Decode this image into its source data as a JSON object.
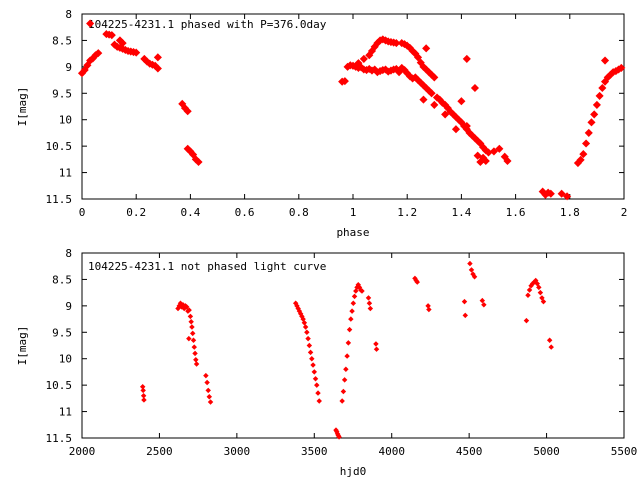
{
  "colors": {
    "points": "#ff0000",
    "axes": "#000000",
    "background": "#ffffff"
  },
  "chart_data": [
    {
      "type": "scatter",
      "title": "104225-4231.1 phased with P=376.0day",
      "xlabel": "phase",
      "ylabel": "I[mag]",
      "xlim": [
        0,
        2
      ],
      "ylim": [
        8,
        11.5
      ],
      "y_inverted": true,
      "x_ticks": [
        "0",
        "0.2",
        "0.4",
        "0.6",
        "0.8",
        "1",
        "1.2",
        "1.4",
        "1.6",
        "1.8",
        "2"
      ],
      "y_ticks": [
        "8",
        "8.5",
        "9",
        "9.5",
        "10",
        "10.5",
        "11",
        "11.5"
      ],
      "grid": false,
      "marker": "filled diamond",
      "series": [
        {
          "points": [
            [
              0.0,
              9.12
            ],
            [
              0.01,
              9.06
            ],
            [
              0.02,
              8.97
            ],
            [
              0.03,
              8.88
            ],
            [
              0.04,
              8.84
            ],
            [
              0.05,
              8.78
            ],
            [
              0.06,
              8.74
            ],
            [
              0.03,
              8.18
            ],
            [
              0.09,
              8.38
            ],
            [
              0.1,
              8.39
            ],
            [
              0.11,
              8.4
            ],
            [
              0.12,
              8.58
            ],
            [
              0.13,
              8.62
            ],
            [
              0.14,
              8.64
            ],
            [
              0.15,
              8.66
            ],
            [
              0.16,
              8.68
            ],
            [
              0.17,
              8.7
            ],
            [
              0.18,
              8.71
            ],
            [
              0.19,
              8.72
            ],
            [
              0.2,
              8.73
            ],
            [
              0.14,
              8.5
            ],
            [
              0.15,
              8.55
            ],
            [
              0.23,
              8.85
            ],
            [
              0.24,
              8.9
            ],
            [
              0.25,
              8.94
            ],
            [
              0.26,
              8.96
            ],
            [
              0.27,
              8.98
            ],
            [
              0.28,
              9.03
            ],
            [
              0.28,
              8.82
            ],
            [
              0.37,
              9.7
            ],
            [
              0.38,
              9.78
            ],
            [
              0.39,
              9.84
            ],
            [
              0.39,
              10.55
            ],
            [
              0.4,
              10.6
            ],
            [
              0.41,
              10.66
            ],
            [
              0.42,
              10.75
            ],
            [
              0.43,
              10.8
            ],
            [
              0.96,
              9.28
            ],
            [
              0.97,
              9.27
            ],
            [
              0.98,
              9.0
            ],
            [
              0.99,
              8.97
            ],
            [
              1.0,
              8.98
            ],
            [
              1.01,
              9.0
            ],
            [
              1.02,
              9.02
            ],
            [
              1.03,
              9.01
            ],
            [
              1.04,
              9.05
            ],
            [
              1.05,
              9.06
            ],
            [
              1.06,
              9.04
            ],
            [
              1.07,
              9.07
            ],
            [
              1.08,
              9.05
            ],
            [
              1.09,
              9.1
            ],
            [
              1.1,
              9.08
            ],
            [
              1.11,
              9.06
            ],
            [
              1.12,
              9.05
            ],
            [
              1.13,
              9.09
            ],
            [
              1.14,
              9.07
            ],
            [
              1.15,
              9.05
            ],
            [
              1.16,
              9.04
            ],
            [
              1.17,
              9.1
            ],
            [
              1.02,
              8.93
            ],
            [
              1.04,
              8.85
            ],
            [
              1.06,
              8.78
            ],
            [
              1.07,
              8.7
            ],
            [
              1.08,
              8.62
            ],
            [
              1.09,
              8.55
            ],
            [
              1.1,
              8.5
            ],
            [
              1.11,
              8.48
            ],
            [
              1.12,
              8.5
            ],
            [
              1.13,
              8.52
            ],
            [
              1.14,
              8.53
            ],
            [
              1.15,
              8.54
            ],
            [
              1.16,
              8.55
            ],
            [
              1.18,
              8.55
            ],
            [
              1.19,
              8.57
            ],
            [
              1.2,
              8.6
            ],
            [
              1.21,
              8.64
            ],
            [
              1.22,
              8.7
            ],
            [
              1.23,
              8.75
            ],
            [
              1.24,
              8.82
            ],
            [
              1.25,
              8.92
            ],
            [
              1.26,
              9.0
            ],
            [
              1.27,
              9.05
            ],
            [
              1.28,
              9.1
            ],
            [
              1.3,
              9.2
            ],
            [
              1.18,
              9.02
            ],
            [
              1.19,
              9.06
            ],
            [
              1.2,
              9.12
            ],
            [
              1.21,
              9.18
            ],
            [
              1.22,
              9.22
            ],
            [
              1.23,
              9.2
            ],
            [
              1.24,
              9.25
            ],
            [
              1.25,
              9.3
            ],
            [
              1.26,
              9.35
            ],
            [
              1.27,
              9.4
            ],
            [
              1.28,
              9.45
            ],
            [
              1.29,
              9.5
            ],
            [
              1.31,
              9.58
            ],
            [
              1.32,
              9.62
            ],
            [
              1.33,
              9.68
            ],
            [
              1.34,
              9.72
            ],
            [
              1.35,
              9.78
            ],
            [
              1.36,
              9.85
            ],
            [
              1.37,
              9.9
            ],
            [
              1.38,
              9.95
            ],
            [
              1.39,
              10.0
            ],
            [
              1.4,
              10.05
            ],
            [
              1.41,
              10.12
            ],
            [
              1.42,
              10.18
            ],
            [
              1.43,
              10.25
            ],
            [
              1.44,
              10.3
            ],
            [
              1.45,
              10.35
            ],
            [
              1.46,
              10.4
            ],
            [
              1.47,
              10.45
            ],
            [
              1.48,
              10.52
            ],
            [
              1.49,
              10.58
            ],
            [
              1.5,
              10.62
            ],
            [
              1.46,
              10.68
            ],
            [
              1.48,
              10.72
            ],
            [
              1.49,
              10.78
            ],
            [
              1.47,
              10.8
            ],
            [
              1.26,
              9.62
            ],
            [
              1.3,
              9.72
            ],
            [
              1.34,
              9.9
            ],
            [
              1.42,
              10.12
            ],
            [
              1.38,
              10.18
            ],
            [
              1.42,
              8.85
            ],
            [
              1.45,
              9.4
            ],
            [
              1.4,
              9.65
            ],
            [
              1.27,
              8.65
            ],
            [
              1.29,
              9.15
            ],
            [
              1.54,
              10.55
            ],
            [
              1.56,
              10.7
            ],
            [
              1.57,
              10.78
            ],
            [
              1.52,
              10.6
            ],
            [
              1.7,
              11.36
            ],
            [
              1.72,
              11.38
            ],
            [
              1.71,
              11.42
            ],
            [
              1.73,
              11.4
            ],
            [
              1.77,
              11.4
            ],
            [
              1.79,
              11.45
            ],
            [
              1.83,
              10.82
            ],
            [
              1.84,
              10.76
            ],
            [
              1.85,
              10.65
            ],
            [
              1.86,
              10.45
            ],
            [
              1.87,
              10.25
            ],
            [
              1.88,
              10.05
            ],
            [
              1.89,
              9.9
            ],
            [
              1.9,
              9.72
            ],
            [
              1.91,
              9.55
            ],
            [
              1.92,
              9.4
            ],
            [
              1.93,
              9.28
            ],
            [
              1.94,
              9.2
            ],
            [
              1.95,
              9.15
            ],
            [
              1.96,
              9.1
            ],
            [
              1.97,
              9.08
            ],
            [
              1.98,
              9.05
            ],
            [
              1.99,
              9.02
            ],
            [
              1.93,
              8.88
            ]
          ]
        }
      ]
    },
    {
      "type": "scatter",
      "title": "104225-4231.1 not phased light curve",
      "xlabel": "hjd0",
      "ylabel": "I[mag]",
      "xlim": [
        2000,
        5500
      ],
      "ylim": [
        8,
        11.5
      ],
      "y_inverted": true,
      "x_ticks": [
        "2000",
        "2500",
        "3000",
        "3500",
        "4000",
        "4500",
        "5000",
        "5500"
      ],
      "y_ticks": [
        "8",
        "8.5",
        "9",
        "9.5",
        "10",
        "10.5",
        "11",
        "11.5"
      ],
      "grid": false,
      "marker": "small diamond",
      "series": [
        {
          "points": [
            [
              2392,
              10.53
            ],
            [
              2395,
              10.6
            ],
            [
              2398,
              10.7
            ],
            [
              2400,
              10.78
            ],
            [
              2620,
              9.05
            ],
            [
              2628,
              9.0
            ],
            [
              2636,
              8.95
            ],
            [
              2644,
              9.02
            ],
            [
              2652,
              8.98
            ],
            [
              2660,
              9.05
            ],
            [
              2668,
              9.0
            ],
            [
              2676,
              9.02
            ],
            [
              2684,
              9.1
            ],
            [
              2692,
              9.08
            ],
            [
              2700,
              9.2
            ],
            [
              2705,
              9.3
            ],
            [
              2710,
              9.4
            ],
            [
              2715,
              9.52
            ],
            [
              2720,
              9.65
            ],
            [
              2725,
              9.78
            ],
            [
              2730,
              9.9
            ],
            [
              2735,
              10.02
            ],
            [
              2740,
              10.1
            ],
            [
              2690,
              9.62
            ],
            [
              2800,
              10.32
            ],
            [
              2808,
              10.45
            ],
            [
              2815,
              10.6
            ],
            [
              2822,
              10.72
            ],
            [
              2830,
              10.82
            ],
            [
              3380,
              8.95
            ],
            [
              3388,
              9.0
            ],
            [
              3396,
              9.05
            ],
            [
              3404,
              9.1
            ],
            [
              3412,
              9.15
            ],
            [
              3420,
              9.2
            ],
            [
              3428,
              9.25
            ],
            [
              3436,
              9.32
            ],
            [
              3444,
              9.4
            ],
            [
              3452,
              9.5
            ],
            [
              3460,
              9.62
            ],
            [
              3468,
              9.75
            ],
            [
              3476,
              9.88
            ],
            [
              3484,
              10.0
            ],
            [
              3492,
              10.12
            ],
            [
              3500,
              10.25
            ],
            [
              3508,
              10.38
            ],
            [
              3516,
              10.5
            ],
            [
              3524,
              10.65
            ],
            [
              3532,
              10.8
            ],
            [
              3640,
              11.35
            ],
            [
              3645,
              11.38
            ],
            [
              3650,
              11.42
            ],
            [
              3655,
              11.45
            ],
            [
              3660,
              11.48
            ],
            [
              3680,
              10.8
            ],
            [
              3688,
              10.62
            ],
            [
              3696,
              10.4
            ],
            [
              3704,
              10.2
            ],
            [
              3712,
              9.95
            ],
            [
              3720,
              9.7
            ],
            [
              3728,
              9.45
            ],
            [
              3736,
              9.25
            ],
            [
              3744,
              9.1
            ],
            [
              3752,
              8.95
            ],
            [
              3760,
              8.82
            ],
            [
              3768,
              8.72
            ],
            [
              3776,
              8.65
            ],
            [
              3784,
              8.6
            ],
            [
              3792,
              8.65
            ],
            [
              3800,
              8.7
            ],
            [
              3808,
              8.72
            ],
            [
              3850,
              8.85
            ],
            [
              3856,
              8.95
            ],
            [
              3862,
              9.05
            ],
            [
              3898,
              9.72
            ],
            [
              3902,
              9.82
            ],
            [
              4150,
              8.48
            ],
            [
              4158,
              8.52
            ],
            [
              4165,
              8.55
            ],
            [
              4235,
              9.0
            ],
            [
              4240,
              9.07
            ],
            [
              4470,
              8.92
            ],
            [
              4475,
              9.18
            ],
            [
              4505,
              8.2
            ],
            [
              4515,
              8.32
            ],
            [
              4525,
              8.4
            ],
            [
              4535,
              8.45
            ],
            [
              4585,
              8.9
            ],
            [
              4595,
              8.98
            ],
            [
              4870,
              9.28
            ],
            [
              4880,
              8.8
            ],
            [
              4890,
              8.7
            ],
            [
              4900,
              8.62
            ],
            [
              4910,
              8.58
            ],
            [
              4920,
              8.55
            ],
            [
              4930,
              8.52
            ],
            [
              4940,
              8.58
            ],
            [
              4950,
              8.65
            ],
            [
              4960,
              8.75
            ],
            [
              4970,
              8.85
            ],
            [
              4980,
              8.92
            ],
            [
              5020,
              9.65
            ],
            [
              5030,
              9.78
            ]
          ]
        }
      ]
    }
  ]
}
